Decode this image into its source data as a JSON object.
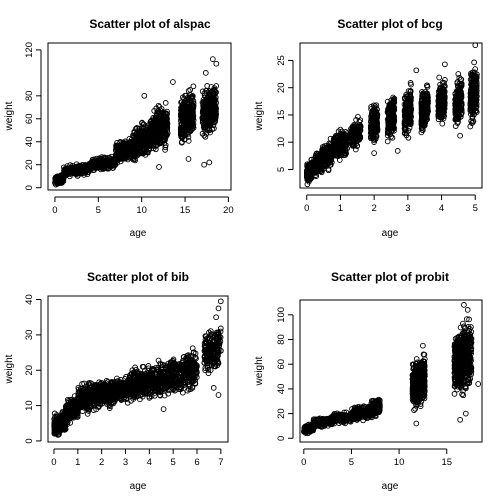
{
  "chart_data": [
    {
      "type": "scatter",
      "title": "Scatter plot of alspac",
      "xlabel": "age",
      "ylabel": "weight",
      "xlim": [
        -0.8,
        20.3
      ],
      "ylim": [
        -2,
        126
      ],
      "xticks": [
        0,
        5,
        10,
        15,
        20
      ],
      "yticks": [
        0,
        20,
        40,
        60,
        80,
        120
      ],
      "grid": false,
      "groups": [
        {
          "x_range": [
            0,
            1
          ],
          "y_range": [
            2,
            12
          ],
          "n": 140
        },
        {
          "x_range": [
            1,
            4
          ],
          "y_range": [
            9,
            22
          ],
          "n": 220
        },
        {
          "x_range": [
            4,
            7
          ],
          "y_range": [
            14,
            28
          ],
          "n": 220
        },
        {
          "x_range": [
            7,
            9
          ],
          "y_range": [
            18,
            45
          ],
          "n": 220
        },
        {
          "x_range": [
            9,
            11
          ],
          "y_range": [
            20,
            60
          ],
          "n": 260
        },
        {
          "x_range": [
            11,
            13
          ],
          "y_range": [
            25,
            78
          ],
          "n": 300
        },
        {
          "x_range": [
            14.5,
            16
          ],
          "y_range": [
            35,
            90
          ],
          "n": 300
        },
        {
          "x_range": [
            17,
            18.6
          ],
          "y_range": [
            40,
            95
          ],
          "n": 300
        }
      ],
      "points": [
        {
          "x": 18.2,
          "y": 112
        },
        {
          "x": 18.6,
          "y": 108
        },
        {
          "x": 17.4,
          "y": 100
        },
        {
          "x": 13.6,
          "y": 92
        },
        {
          "x": 10.3,
          "y": 80
        },
        {
          "x": 17.8,
          "y": 22
        },
        {
          "x": 17.2,
          "y": 20
        },
        {
          "x": 12.0,
          "y": 18
        },
        {
          "x": 15.4,
          "y": 25
        }
      ]
    },
    {
      "type": "scatter",
      "title": "Scatter plot of bcg",
      "xlabel": "age",
      "ylabel": "weight",
      "xlim": [
        -0.2,
        5.2
      ],
      "ylim": [
        1.6,
        28.2
      ],
      "xticks": [
        0,
        1,
        2,
        3,
        4,
        5
      ],
      "yticks": [
        5,
        10,
        15,
        20,
        25
      ],
      "grid": false,
      "groups": [
        {
          "x_range": [
            0,
            0.15
          ],
          "y_range": [
            2,
            7
          ],
          "n": 160
        },
        {
          "x_range": [
            0.2,
            0.45
          ],
          "y_range": [
            3,
            9
          ],
          "n": 160
        },
        {
          "x_range": [
            0.45,
            0.75
          ],
          "y_range": [
            4,
            11
          ],
          "n": 160
        },
        {
          "x_range": [
            0.8,
            1.2
          ],
          "y_range": [
            6,
            13
          ],
          "n": 200
        },
        {
          "x_range": [
            1.3,
            1.6
          ],
          "y_range": [
            8,
            15
          ],
          "n": 160
        },
        {
          "x_range": [
            1.9,
            2.1
          ],
          "y_range": [
            9,
            18
          ],
          "n": 200
        },
        {
          "x_range": [
            2.4,
            2.6
          ],
          "y_range": [
            10,
            19
          ],
          "n": 200
        },
        {
          "x_range": [
            2.9,
            3.1
          ],
          "y_range": [
            10,
            21
          ],
          "n": 200
        },
        {
          "x_range": [
            3.4,
            3.6
          ],
          "y_range": [
            11,
            21
          ],
          "n": 200
        },
        {
          "x_range": [
            3.9,
            4.1
          ],
          "y_range": [
            12,
            23
          ],
          "n": 200
        },
        {
          "x_range": [
            4.4,
            4.6
          ],
          "y_range": [
            12,
            23
          ],
          "n": 200
        },
        {
          "x_range": [
            4.85,
            5.05
          ],
          "y_range": [
            12,
            26
          ],
          "n": 200
        }
      ],
      "points": [
        {
          "x": 5.0,
          "y": 27.8
        },
        {
          "x": 4.1,
          "y": 24.3
        },
        {
          "x": 3.25,
          "y": 23.2
        },
        {
          "x": 2.7,
          "y": 8.4
        },
        {
          "x": 2.0,
          "y": 8.0
        },
        {
          "x": 4.55,
          "y": 11.2
        }
      ]
    },
    {
      "type": "scatter",
      "title": "Scatter plot of bib",
      "xlabel": "age",
      "ylabel": "weight",
      "xlim": [
        -0.25,
        7.3
      ],
      "ylim": [
        -0.3,
        41
      ],
      "xticks": [
        0,
        1,
        2,
        3,
        4,
        5,
        6,
        7
      ],
      "yticks": [
        0,
        10,
        20,
        30,
        40
      ],
      "grid": false,
      "groups": [
        {
          "x_range": [
            0,
            0.5
          ],
          "y_range": [
            1,
            9
          ],
          "n": 220
        },
        {
          "x_range": [
            0.5,
            1
          ],
          "y_range": [
            4,
            13
          ],
          "n": 220
        },
        {
          "x_range": [
            1,
            2
          ],
          "y_range": [
            7,
            18
          ],
          "n": 280
        },
        {
          "x_range": [
            2,
            3
          ],
          "y_range": [
            9,
            19
          ],
          "n": 280
        },
        {
          "x_range": [
            3,
            4
          ],
          "y_range": [
            10,
            22
          ],
          "n": 280
        },
        {
          "x_range": [
            4,
            5
          ],
          "y_range": [
            11,
            24
          ],
          "n": 280
        },
        {
          "x_range": [
            5,
            6
          ],
          "y_range": [
            12,
            27
          ],
          "n": 260
        },
        {
          "x_range": [
            6.3,
            7
          ],
          "y_range": [
            18,
            34
          ],
          "n": 180
        }
      ],
      "points": [
        {
          "x": 7.0,
          "y": 39.5
        },
        {
          "x": 6.9,
          "y": 37.5
        },
        {
          "x": 6.8,
          "y": 35.0
        },
        {
          "x": 6.7,
          "y": 15.0
        },
        {
          "x": 6.9,
          "y": 13.0
        },
        {
          "x": 4.6,
          "y": 9.0
        }
      ]
    },
    {
      "type": "scatter",
      "title": "Scatter plot of probit",
      "xlabel": "age",
      "ylabel": "weight",
      "xlim": [
        -0.4,
        18.7
      ],
      "ylim": [
        -3,
        112
      ],
      "xticks": [
        0,
        5,
        10,
        15
      ],
      "yticks": [
        0,
        20,
        40,
        60,
        80,
        100
      ],
      "grid": false,
      "groups": [
        {
          "x_range": [
            0,
            1
          ],
          "y_range": [
            3,
            12
          ],
          "n": 140
        },
        {
          "x_range": [
            1,
            3
          ],
          "y_range": [
            8,
            18
          ],
          "n": 200
        },
        {
          "x_range": [
            3,
            5
          ],
          "y_range": [
            11,
            22
          ],
          "n": 200
        },
        {
          "x_range": [
            5,
            7
          ],
          "y_range": [
            13,
            28
          ],
          "n": 200
        },
        {
          "x_range": [
            7,
            8
          ],
          "y_range": [
            15,
            35
          ],
          "n": 140
        },
        {
          "x_range": [
            11.4,
            12.7
          ],
          "y_range": [
            20,
            70
          ],
          "n": 500
        },
        {
          "x_range": [
            15.8,
            17.6
          ],
          "y_range": [
            28,
            100
          ],
          "n": 560
        }
      ],
      "points": [
        {
          "x": 16.8,
          "y": 108
        },
        {
          "x": 17.2,
          "y": 104
        },
        {
          "x": 16.4,
          "y": 15
        },
        {
          "x": 17.0,
          "y": 20
        },
        {
          "x": 11.8,
          "y": 12
        },
        {
          "x": 12.5,
          "y": 75
        },
        {
          "x": 18.3,
          "y": 44
        }
      ]
    }
  ]
}
